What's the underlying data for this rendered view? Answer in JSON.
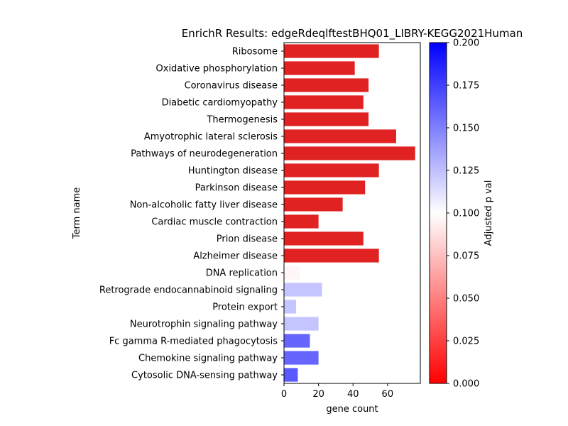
{
  "chart_data": {
    "type": "bar",
    "orientation": "horizontal",
    "title": "EnrichR Results: edgeRdeqlftestBHQ01_LIBRY-KEGG2021Human",
    "xlabel": "gene count",
    "ylabel": "Term name",
    "xlim": [
      0,
      79
    ],
    "xticks": [
      "0",
      "20",
      "40",
      "60"
    ],
    "categories": [
      "Ribosome",
      "Oxidative phosphorylation",
      "Coronavirus disease",
      "Diabetic cardiomyopathy",
      "Thermogenesis",
      "Amyotrophic lateral sclerosis",
      "Pathways of neurodegeneration",
      "Huntington disease",
      "Parkinson disease",
      "Non-alcoholic fatty liver disease",
      "Cardiac muscle contraction",
      "Prion disease",
      "Alzheimer disease",
      "DNA replication",
      "Retrograde endocannabinoid signaling",
      "Protein export",
      "Neurotrophin signaling pathway",
      "Fc gamma R-mediated phagocytosis",
      "Chemokine signaling pathway",
      "Cytosolic DNA-sensing pathway"
    ],
    "values": [
      55,
      41,
      49,
      46,
      49,
      65,
      76,
      55,
      47,
      34,
      20,
      46,
      55,
      9,
      22,
      7,
      20,
      15,
      20,
      8
    ],
    "color_values": [
      0.0,
      0.0,
      0.0,
      0.0,
      0.0,
      0.0,
      0.0,
      0.0,
      0.0,
      0.0,
      0.0,
      0.0,
      0.0,
      0.097,
      0.123,
      0.123,
      0.123,
      0.16,
      0.16,
      0.165
    ],
    "colorbar": {
      "label": "Adjusted p val",
      "range": [
        0,
        0.2
      ],
      "ticks": [
        "0.000",
        "0.025",
        "0.050",
        "0.075",
        "0.100",
        "0.125",
        "0.150",
        "0.175",
        "0.200"
      ],
      "colormap": [
        "#ff0000",
        "#ffffff",
        "#0000ff"
      ]
    },
    "grid": false,
    "legend": "none"
  }
}
